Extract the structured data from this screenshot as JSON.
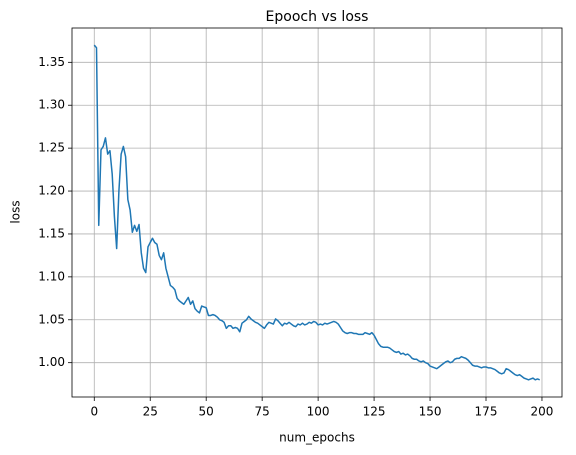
{
  "chart_data": {
    "type": "line",
    "title": "Epooch vs loss",
    "x_label": "num_epochs",
    "y_label": "loss",
    "x": [
      0,
      1,
      2,
      3,
      4,
      5,
      6,
      7,
      8,
      9,
      10,
      11,
      12,
      13,
      14,
      15,
      16,
      17,
      18,
      19,
      20,
      21,
      22,
      23,
      24,
      25,
      26,
      27,
      28,
      29,
      30,
      31,
      32,
      33,
      34,
      35,
      36,
      37,
      38,
      39,
      40,
      41,
      42,
      43,
      44,
      45,
      46,
      47,
      48,
      49,
      50,
      51,
      52,
      53,
      54,
      55,
      56,
      57,
      58,
      59,
      60,
      61,
      62,
      63,
      64,
      65,
      66,
      67,
      68,
      69,
      70,
      71,
      72,
      73,
      74,
      75,
      76,
      77,
      78,
      79,
      80,
      81,
      82,
      83,
      84,
      85,
      86,
      87,
      88,
      89,
      90,
      91,
      92,
      93,
      94,
      95,
      96,
      97,
      98,
      99,
      100,
      101,
      102,
      103,
      104,
      105,
      106,
      107,
      108,
      109,
      110,
      111,
      112,
      113,
      114,
      115,
      116,
      117,
      118,
      119,
      120,
      121,
      122,
      123,
      124,
      125,
      126,
      127,
      128,
      129,
      130,
      131,
      132,
      133,
      134,
      135,
      136,
      137,
      138,
      139,
      140,
      141,
      142,
      143,
      144,
      145,
      146,
      147,
      148,
      149,
      150,
      151,
      152,
      153,
      154,
      155,
      156,
      157,
      158,
      159,
      160,
      161,
      162,
      163,
      164,
      165,
      166,
      167,
      168,
      169,
      170,
      171,
      172,
      173,
      174,
      175,
      176,
      177,
      178,
      179,
      180,
      181,
      182,
      183,
      184,
      185,
      186,
      187,
      188,
      189,
      190,
      191,
      192,
      193,
      194,
      195,
      196,
      197,
      198,
      199
    ],
    "series": [
      {
        "name": "loss",
        "color": "#1f77b4",
        "values": [
          1.37,
          1.367,
          1.16,
          1.248,
          1.252,
          1.262,
          1.243,
          1.247,
          1.22,
          1.17,
          1.133,
          1.2,
          1.243,
          1.252,
          1.24,
          1.19,
          1.178,
          1.152,
          1.16,
          1.153,
          1.161,
          1.128,
          1.11,
          1.105,
          1.135,
          1.14,
          1.145,
          1.14,
          1.138,
          1.125,
          1.12,
          1.128,
          1.11,
          1.1,
          1.09,
          1.088,
          1.085,
          1.075,
          1.072,
          1.07,
          1.068,
          1.072,
          1.076,
          1.068,
          1.072,
          1.063,
          1.06,
          1.058,
          1.066,
          1.065,
          1.064,
          1.055,
          1.055,
          1.056,
          1.055,
          1.053,
          1.05,
          1.049,
          1.047,
          1.04,
          1.043,
          1.043,
          1.04,
          1.041,
          1.04,
          1.036,
          1.046,
          1.048,
          1.05,
          1.054,
          1.051,
          1.049,
          1.047,
          1.046,
          1.044,
          1.042,
          1.04,
          1.044,
          1.047,
          1.046,
          1.045,
          1.051,
          1.049,
          1.046,
          1.043,
          1.046,
          1.045,
          1.047,
          1.045,
          1.043,
          1.042,
          1.045,
          1.044,
          1.046,
          1.044,
          1.045,
          1.047,
          1.046,
          1.048,
          1.047,
          1.044,
          1.045,
          1.044,
          1.046,
          1.045,
          1.046,
          1.047,
          1.048,
          1.047,
          1.045,
          1.041,
          1.037,
          1.035,
          1.034,
          1.035,
          1.035,
          1.034,
          1.034,
          1.033,
          1.033,
          1.033,
          1.035,
          1.034,
          1.033,
          1.035,
          1.032,
          1.027,
          1.022,
          1.019,
          1.018,
          1.018,
          1.018,
          1.017,
          1.015,
          1.013,
          1.012,
          1.013,
          1.01,
          1.011,
          1.009,
          1.01,
          1.008,
          1.005,
          1.004,
          1.004,
          1.002,
          1.001,
          1.002,
          1.0,
          0.999,
          0.996,
          0.995,
          0.994,
          0.993,
          0.995,
          0.997,
          0.999,
          1.001,
          1.002,
          1.0,
          1.001,
          1.004,
          1.005,
          1.005,
          1.007,
          1.006,
          1.005,
          1.003,
          1.0,
          0.997,
          0.996,
          0.996,
          0.995,
          0.994,
          0.995,
          0.995,
          0.994,
          0.994,
          0.993,
          0.992,
          0.99,
          0.988,
          0.987,
          0.988,
          0.993,
          0.992,
          0.99,
          0.988,
          0.986,
          0.985,
          0.986,
          0.984,
          0.982,
          0.981,
          0.98,
          0.981,
          0.982,
          0.98,
          0.981,
          0.98
        ]
      }
    ],
    "xlim": [
      -9.95,
      208.95
    ],
    "ylim": [
      0.96,
      1.39
    ],
    "xticks": [
      0,
      25,
      50,
      75,
      100,
      125,
      150,
      175,
      200
    ],
    "yticks": [
      {
        "value": 1,
        "label": "1.00"
      },
      1.05,
      {
        "value": 1.1,
        "label": "1.10"
      },
      1.15,
      {
        "value": 1.2,
        "label": "1.20"
      },
      1.25,
      {
        "value": 1.3,
        "label": "1.30"
      },
      1.35
    ],
    "grid": true
  }
}
